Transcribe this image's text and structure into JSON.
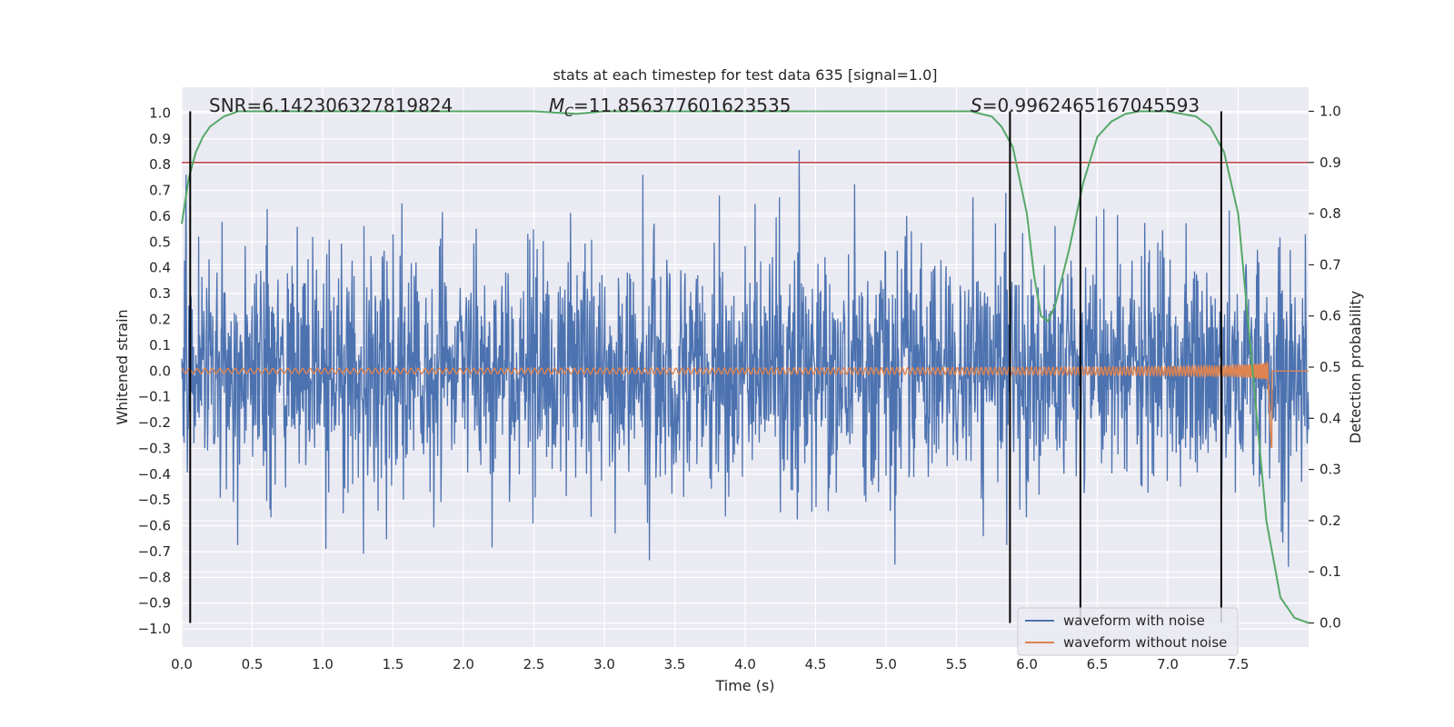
{
  "chart_data": {
    "type": "line",
    "title": "stats at each timestep for test data 635 [signal=1.0]",
    "xlabel": "Time (s)",
    "ylabel": "Whitened strain",
    "y2label": "Detection probability",
    "xlim": [
      0.0,
      8.0
    ],
    "ylim": [
      -1.07,
      1.1
    ],
    "y2lim": [
      -0.047,
      1.047
    ],
    "xticks": [
      "0.0",
      "0.5",
      "1.0",
      "1.5",
      "2.0",
      "2.5",
      "3.0",
      "3.5",
      "4.0",
      "4.5",
      "5.0",
      "5.5",
      "6.0",
      "6.5",
      "7.0",
      "7.5"
    ],
    "yticks": [
      "-1.0",
      "-0.9",
      "-0.8",
      "-0.7",
      "-0.6",
      "-0.5",
      "-0.4",
      "-0.3",
      "-0.2",
      "-0.1",
      "0.0",
      "0.1",
      "0.2",
      "0.3",
      "0.4",
      "0.5",
      "0.6",
      "0.7",
      "0.8",
      "0.9",
      "1.0"
    ],
    "y2ticks": [
      "0.0",
      "0.1",
      "0.2",
      "0.3",
      "0.4",
      "0.5",
      "0.6",
      "0.7",
      "0.8",
      "0.9",
      "1.0"
    ],
    "grid": true,
    "legend_position": "lower-right",
    "annotations": {
      "snr": "SNR=6.142306327819824",
      "mc_symbol": "M",
      "mc_sub": "C",
      "mc_value": "=11.856377601623535",
      "s_symbol": "S",
      "s_value": "=0.9962465167045593"
    },
    "threshold_line": {
      "axis": "right",
      "value": 0.9,
      "color": "#c44e52"
    },
    "vertical_lines_x": [
      0.06,
      5.88,
      6.38,
      7.38
    ],
    "series": [
      {
        "name": "waveform with noise",
        "color": "#4c72b0",
        "axis": "left",
        "noise_envelope": {
          "typical_abs": 0.45,
          "peak_abs": 0.97,
          "x_range": [
            0.0,
            8.0
          ]
        }
      },
      {
        "name": "waveform without noise",
        "color": "#dd8452",
        "axis": "left",
        "chirp": {
          "x_start": 0.0,
          "x_merger": 7.74,
          "amplitude_start": 0.01,
          "amplitude_peak": 0.24,
          "amplitude_min": -0.35
        }
      },
      {
        "name": "",
        "color": "#55a868",
        "axis": "right",
        "x": [
          0.0,
          0.05,
          0.1,
          0.15,
          0.2,
          0.3,
          0.4,
          0.6,
          1.0,
          2.0,
          2.5,
          2.8,
          3.0,
          3.5,
          4.0,
          5.0,
          5.6,
          5.75,
          5.82,
          5.9,
          6.0,
          6.05,
          6.1,
          6.15,
          6.2,
          6.3,
          6.4,
          6.5,
          6.6,
          6.7,
          6.8,
          7.0,
          7.2,
          7.3,
          7.4,
          7.5,
          7.6,
          7.7,
          7.8,
          7.9,
          8.0
        ],
        "values": [
          0.78,
          0.87,
          0.92,
          0.95,
          0.97,
          0.99,
          1.0,
          1.0,
          1.0,
          1.0,
          1.0,
          0.995,
          1.0,
          1.0,
          1.0,
          1.0,
          1.0,
          0.99,
          0.97,
          0.93,
          0.8,
          0.68,
          0.6,
          0.59,
          0.62,
          0.73,
          0.86,
          0.95,
          0.98,
          0.995,
          1.0,
          1.0,
          0.99,
          0.97,
          0.92,
          0.8,
          0.5,
          0.2,
          0.05,
          0.01,
          0.0
        ]
      }
    ]
  }
}
